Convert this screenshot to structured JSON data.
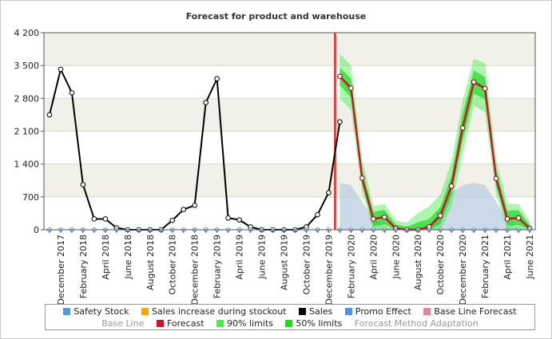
{
  "chart_data": {
    "type": "line",
    "title": "Forecast for product and warehouse",
    "ylim": [
      0,
      4200
    ],
    "y_ticks": [
      0,
      700,
      1400,
      2100,
      2800,
      3500,
      4200
    ],
    "y_tick_labels": [
      "0",
      "700",
      "1 400",
      "2 100",
      "2 800",
      "3 500",
      "4 200"
    ],
    "x": [
      "2017-11",
      "2017-12",
      "2018-01",
      "2018-02",
      "2018-03",
      "2018-04",
      "2018-05",
      "2018-06",
      "2018-07",
      "2018-08",
      "2018-09",
      "2018-10",
      "2018-11",
      "2018-12",
      "2019-01",
      "2019-02",
      "2019-03",
      "2019-04",
      "2019-05",
      "2019-06",
      "2019-07",
      "2019-08",
      "2019-09",
      "2019-10",
      "2019-11",
      "2019-12",
      "2020-01",
      "2020-02",
      "2020-03",
      "2020-04",
      "2020-05",
      "2020-06",
      "2020-07",
      "2020-08",
      "2020-09",
      "2020-10",
      "2020-11",
      "2020-12",
      "2021-01",
      "2021-02",
      "2021-03",
      "2021-04",
      "2021-05",
      "2021-06"
    ],
    "x_tick_labels": [
      "December 2017",
      "February 2018",
      "April 2018",
      "June 2018",
      "August 2018",
      "October 2018",
      "December 2018",
      "February 2019",
      "April 2019",
      "June 2019",
      "August 2019",
      "October 2019",
      "December 2019",
      "February 2020",
      "April 2020",
      "June 2020",
      "August 2020",
      "October 2020",
      "December 2020",
      "February 2021",
      "April 2021",
      "June 2021"
    ],
    "forecast_start": "2020-01",
    "grid": true,
    "legend_position": "bottom",
    "series": [
      {
        "name": "Sales",
        "color": "#000000",
        "values": [
          2450,
          3420,
          2920,
          960,
          230,
          230,
          40,
          0,
          0,
          0,
          0,
          200,
          430,
          520,
          2710,
          3220,
          250,
          210,
          60,
          0,
          0,
          0,
          0,
          60,
          320,
          790,
          2300,
          null,
          null,
          null,
          null,
          null,
          null,
          null,
          null,
          null,
          null,
          null,
          null,
          null,
          null,
          null,
          null,
          null
        ]
      },
      {
        "name": "Forecast",
        "color": "#cc1133",
        "values": [
          null,
          null,
          null,
          null,
          null,
          null,
          null,
          null,
          null,
          null,
          null,
          null,
          null,
          null,
          null,
          null,
          null,
          null,
          null,
          null,
          null,
          null,
          null,
          null,
          null,
          null,
          3270,
          3020,
          1100,
          230,
          270,
          30,
          0,
          0,
          60,
          300,
          930,
          2170,
          3150,
          3010,
          1090,
          230,
          250,
          30
        ]
      },
      {
        "name": "90% limits",
        "color": "#33ff33",
        "lower": [
          null,
          null,
          null,
          null,
          null,
          null,
          null,
          null,
          null,
          null,
          null,
          null,
          null,
          null,
          null,
          null,
          null,
          null,
          null,
          null,
          null,
          null,
          null,
          null,
          null,
          null,
          2800,
          2550,
          800,
          0,
          0,
          0,
          0,
          0,
          0,
          0,
          500,
          1600,
          2650,
          2500,
          750,
          0,
          0,
          0
        ],
        "upper": [
          null,
          null,
          null,
          null,
          null,
          null,
          null,
          null,
          null,
          null,
          null,
          null,
          null,
          null,
          null,
          null,
          null,
          null,
          null,
          null,
          null,
          null,
          null,
          null,
          null,
          null,
          3750,
          3500,
          1500,
          500,
          550,
          200,
          150,
          350,
          500,
          750,
          1450,
          2750,
          3650,
          3550,
          1500,
          550,
          550,
          180
        ]
      },
      {
        "name": "50% limits",
        "color": "#00dd00",
        "lower": [
          null,
          null,
          null,
          null,
          null,
          null,
          null,
          null,
          null,
          null,
          null,
          null,
          null,
          null,
          null,
          null,
          null,
          null,
          null,
          null,
          null,
          null,
          null,
          null,
          null,
          null,
          3080,
          2820,
          960,
          80,
          110,
          0,
          0,
          0,
          0,
          120,
          720,
          1900,
          2900,
          2780,
          940,
          90,
          100,
          0
        ],
        "upper": [
          null,
          null,
          null,
          null,
          null,
          null,
          null,
          null,
          null,
          null,
          null,
          null,
          null,
          null,
          null,
          null,
          null,
          null,
          null,
          null,
          null,
          null,
          null,
          null,
          null,
          null,
          3460,
          3220,
          1250,
          380,
          420,
          110,
          60,
          160,
          230,
          480,
          1150,
          2450,
          3400,
          3250,
          1280,
          400,
          420,
          100
        ]
      },
      {
        "name": "Base Line",
        "color": "#b9cde0",
        "values": [
          null,
          null,
          null,
          null,
          null,
          null,
          null,
          null,
          null,
          null,
          null,
          null,
          null,
          null,
          null,
          null,
          null,
          null,
          null,
          null,
          null,
          null,
          null,
          null,
          null,
          null,
          1000,
          950,
          600,
          250,
          60,
          20,
          0,
          0,
          100,
          400,
          800,
          950,
          1000,
          950,
          600,
          200,
          50,
          0
        ]
      },
      {
        "name": "Safety Stock",
        "color": "#4499dd",
        "values": [
          0,
          0,
          0,
          0,
          0,
          0,
          0,
          0,
          0,
          0,
          0,
          0,
          0,
          0,
          0,
          0,
          0,
          0,
          0,
          0,
          0,
          0,
          0,
          0,
          0,
          0,
          0,
          0,
          0,
          0,
          0,
          0,
          0,
          0,
          0,
          0,
          0,
          0,
          0,
          0,
          0,
          0,
          0,
          0
        ]
      }
    ]
  },
  "legend": {
    "row1": [
      {
        "label": "Safety Stock",
        "color": "#4a9fd4",
        "dim": false
      },
      {
        "label": "Sales increase during stockout",
        "color": "#ffa500",
        "dim": false
      },
      {
        "label": "Sales",
        "color": "#000000",
        "dim": false
      },
      {
        "label": "Promo Effect",
        "color": "#5b8fe0",
        "dim": false
      },
      {
        "label": "Base Line Forecast",
        "color": "#d88a9a",
        "dim": false
      }
    ],
    "row2": [
      {
        "label": "Base Line",
        "color": null,
        "dim": true
      },
      {
        "label": "Forecast",
        "color": "#cc1133",
        "dim": false
      },
      {
        "label": "90% limits",
        "color": "#33ff33",
        "dim": false
      },
      {
        "label": "50% limits",
        "color": "#00ee00",
        "dim": false
      },
      {
        "label": "Forecast Method Adaptation",
        "color": null,
        "dim": true
      }
    ]
  }
}
